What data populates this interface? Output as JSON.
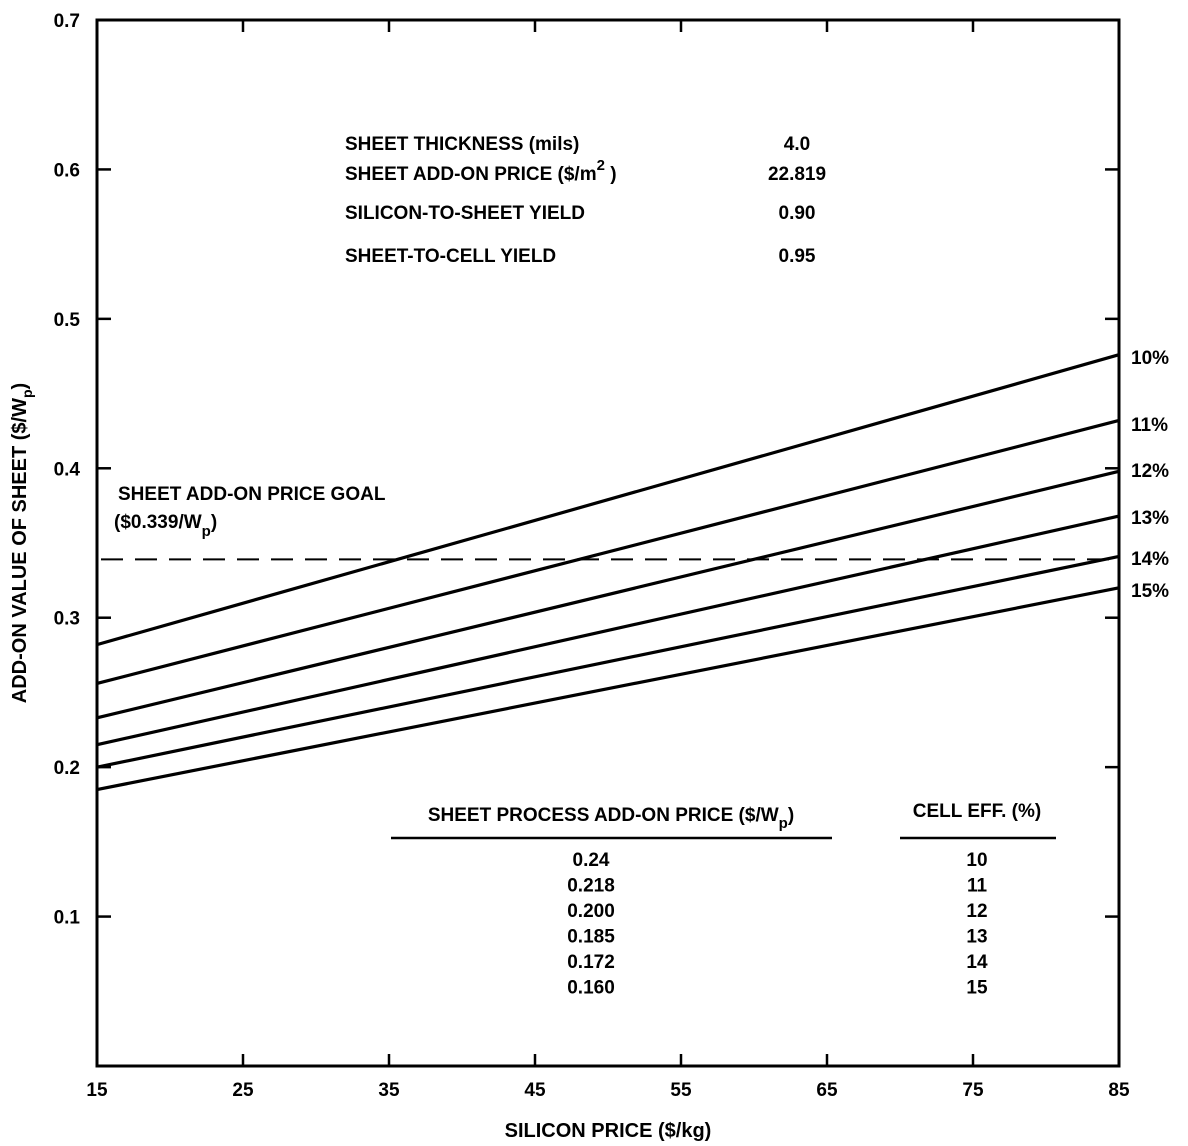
{
  "chart_data": {
    "type": "line",
    "xlabel": "SILICON PRICE ($/kg)",
    "ylabel": "ADD-ON VALUE OF SHEET ($/Wp)",
    "xlim": [
      15,
      85
    ],
    "ylim": [
      0,
      0.7
    ],
    "xticks": [
      15,
      25,
      35,
      45,
      55,
      65,
      75,
      85
    ],
    "yticks": [
      0.1,
      0.2,
      0.3,
      0.4,
      0.5,
      0.6,
      0.7
    ],
    "ytick_labels": [
      "0.1",
      "0.2",
      "0.3",
      "0.4",
      "0.5",
      "0.6",
      "0.7"
    ],
    "grid": false,
    "series": [
      {
        "name": "10%",
        "x": [
          15,
          85
        ],
        "y": [
          0.282,
          0.476
        ]
      },
      {
        "name": "11%",
        "x": [
          15,
          85
        ],
        "y": [
          0.256,
          0.432
        ]
      },
      {
        "name": "12%",
        "x": [
          15,
          85
        ],
        "y": [
          0.233,
          0.398
        ]
      },
      {
        "name": "13%",
        "x": [
          15,
          85
        ],
        "y": [
          0.215,
          0.368
        ]
      },
      {
        "name": "14%",
        "x": [
          15,
          85
        ],
        "y": [
          0.2,
          0.341
        ]
      },
      {
        "name": "15%",
        "x": [
          15,
          85
        ],
        "y": [
          0.185,
          0.32
        ]
      }
    ],
    "goal": {
      "y": 0.339,
      "line1": "SHEET ADD-ON PRICE GOAL",
      "line2": "($0.339/W",
      "line2_sub": "p",
      "line2_end": ")"
    },
    "parameters": [
      {
        "label": "SHEET THICKNESS (mils)",
        "value": "4.0"
      },
      {
        "label": "SHEET ADD-ON PRICE ($/m",
        "label_sup": "2",
        "label_end": ")",
        "value": "22.819"
      },
      {
        "label": "SILICON-TO-SHEET YIELD",
        "value": "0.90"
      },
      {
        "label": "SHEET-TO-CELL YIELD",
        "value": "0.95"
      }
    ],
    "table": {
      "col1_header": "SHEET PROCESS  ADD-ON PRICE ($/W",
      "col1_header_sub": "p",
      "col1_header_end": ")",
      "col2_header": "CELL EFF. (%)",
      "rows": [
        {
          "price": "0.24",
          "eff": "10"
        },
        {
          "price": "0.218",
          "eff": "11"
        },
        {
          "price": "0.200",
          "eff": "12"
        },
        {
          "price": "0.185",
          "eff": "13"
        },
        {
          "price": "0.172",
          "eff": "14"
        },
        {
          "price": "0.160",
          "eff": "15"
        }
      ]
    }
  }
}
